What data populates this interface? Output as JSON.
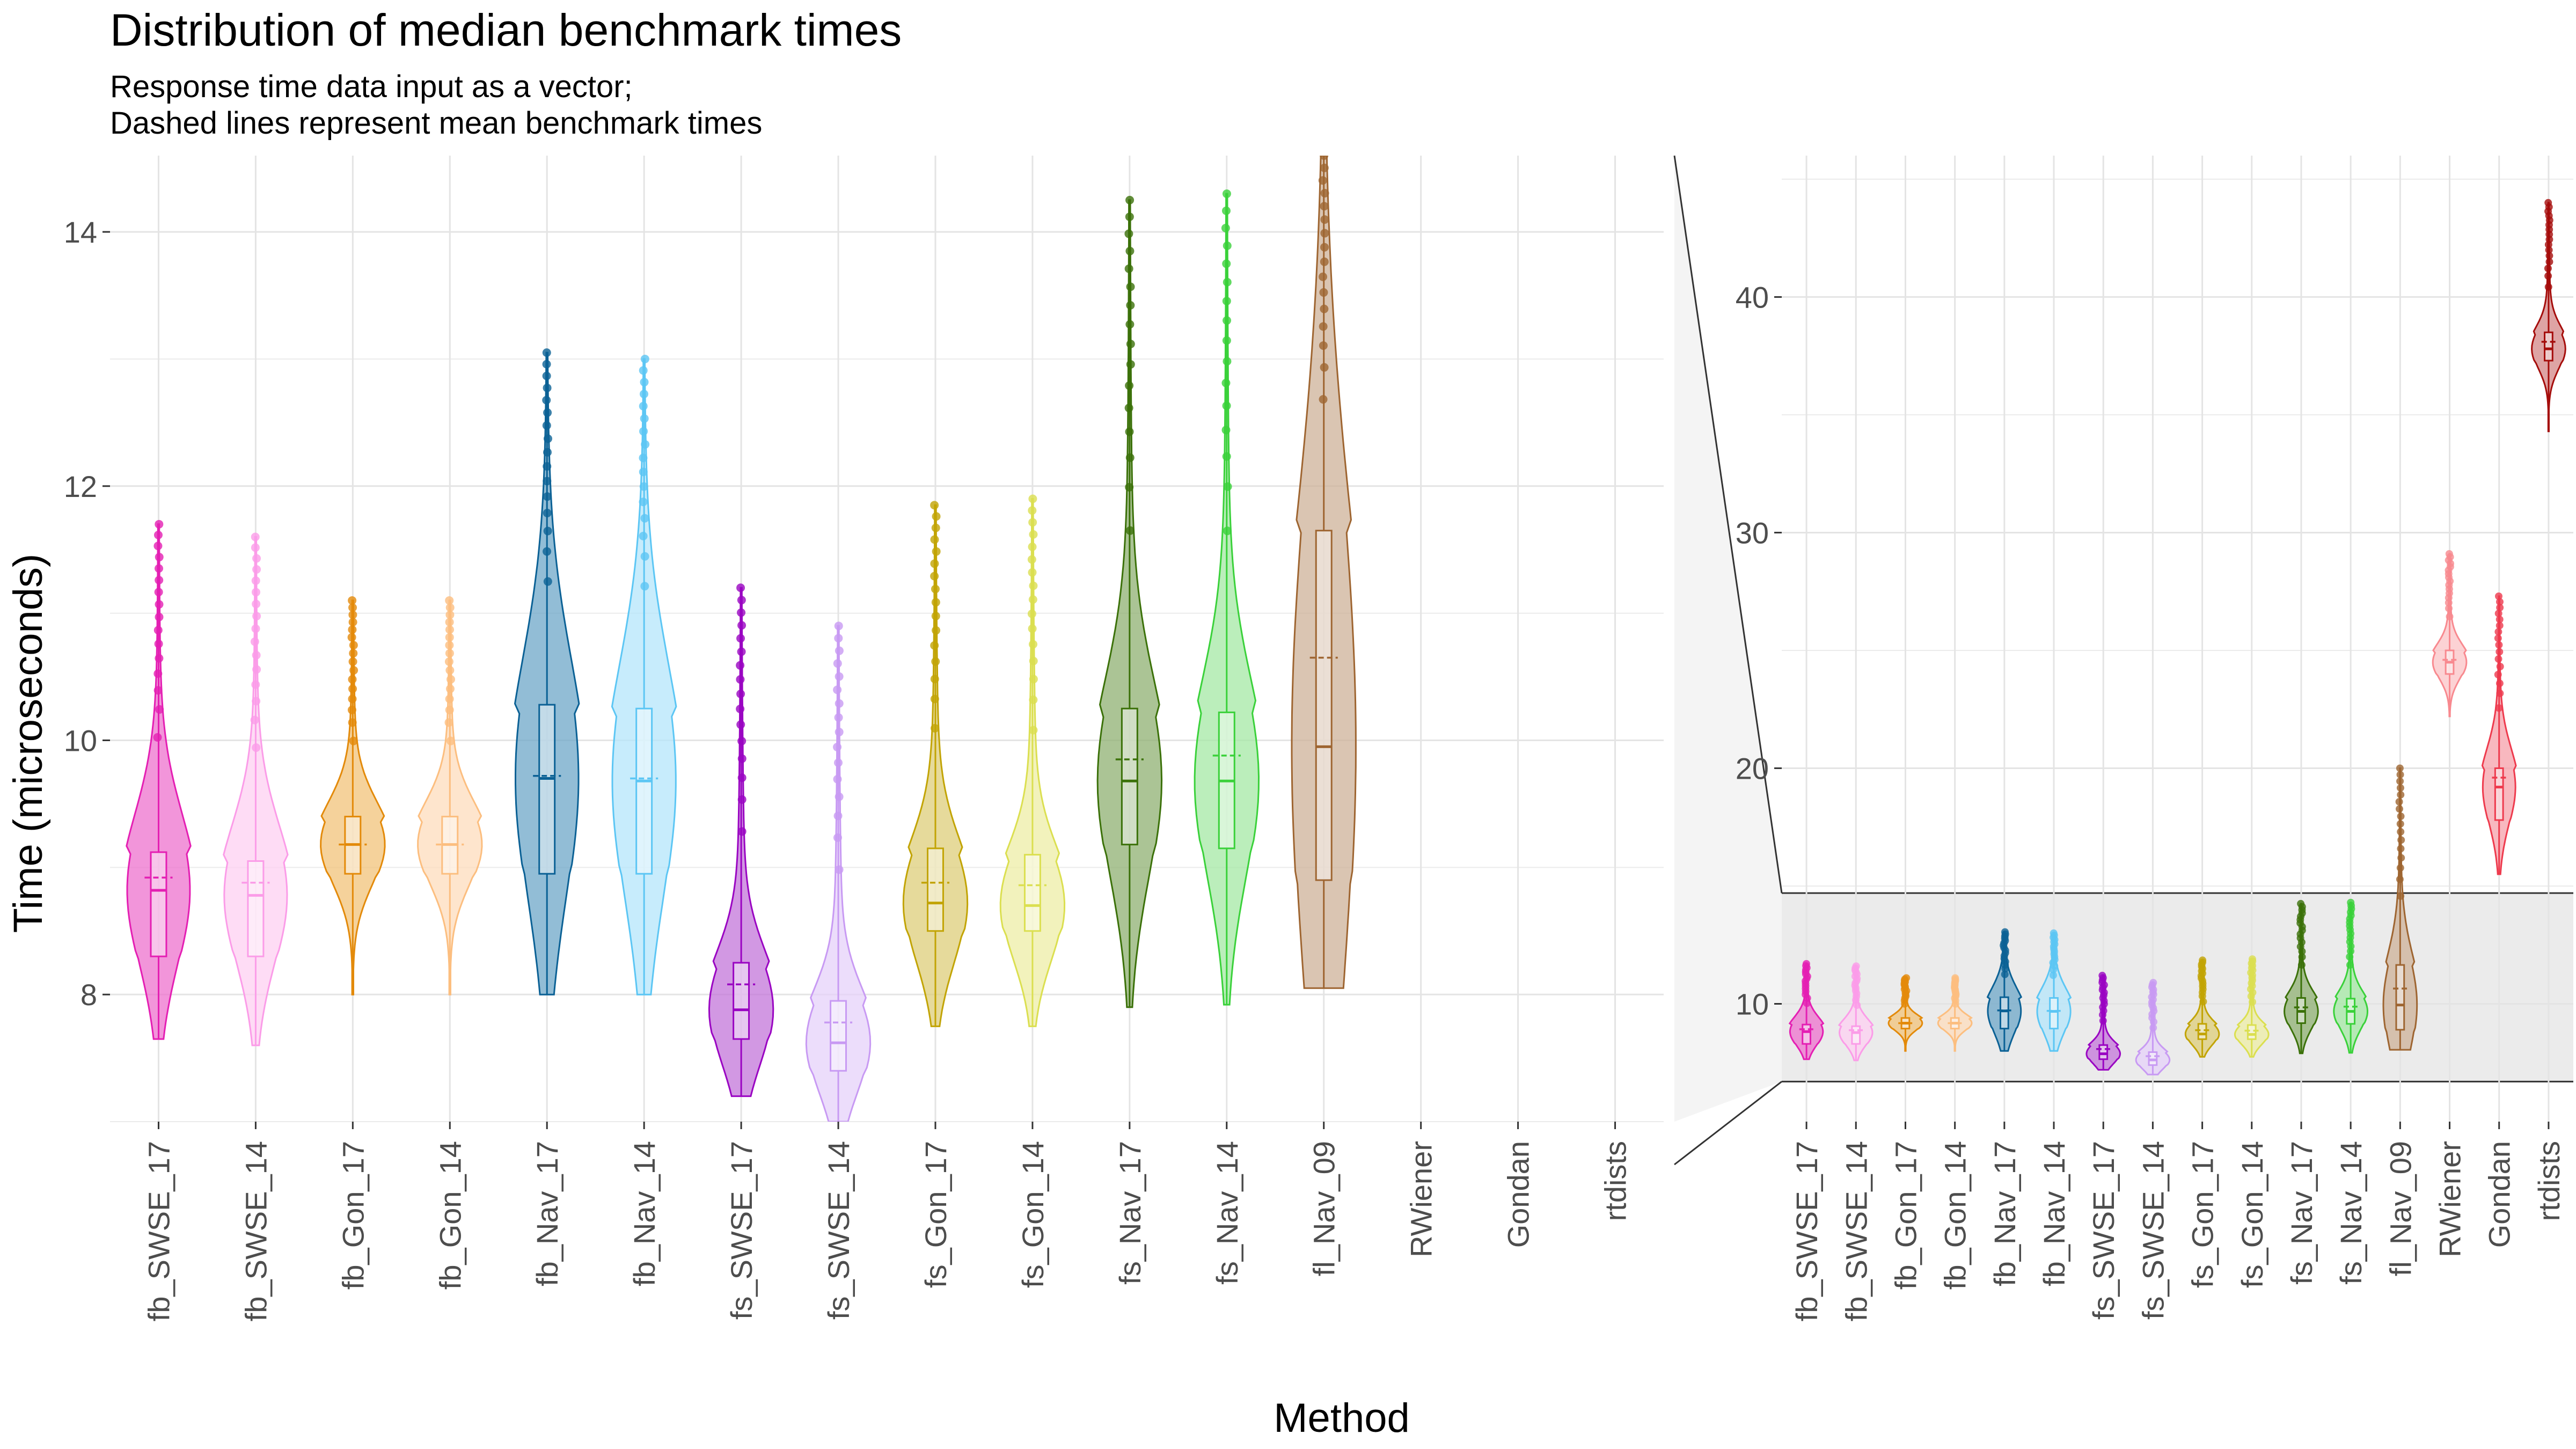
{
  "title": "Distribution of median benchmark times",
  "subtitle_lines": [
    "Response time data input as a vector;",
    "Dashed lines represent mean benchmark times"
  ],
  "chart_data": [
    {
      "type": "violin",
      "panel": "main",
      "xlabel": "Method",
      "ylabel": "Time (microseconds)",
      "ylim": [
        7.0,
        14.6
      ],
      "yticks": [
        8,
        10,
        12,
        14
      ],
      "grid": true,
      "categories": [
        "fb_SWSE_17",
        "fb_SWSE_14",
        "fb_Gon_17",
        "fb_Gon_14",
        "fb_Nav_17",
        "fb_Nav_14",
        "fs_SWSE_17",
        "fs_SWSE_14",
        "fs_Gon_17",
        "fs_Gon_14",
        "fs_Nav_17",
        "fs_Nav_14",
        "fl_Nav_09",
        "RWiener",
        "Gondan",
        "rtdists"
      ],
      "series": [
        {
          "category": "fb_SWSE_17",
          "color": "#e41fb3",
          "fill": "#ee72cd",
          "min": 7.65,
          "q1": 8.3,
          "median": 8.82,
          "q3": 9.12,
          "mean": 8.92,
          "max": 11.7
        },
        {
          "category": "fb_SWSE_14",
          "color": "#fb9ce8",
          "fill": "#fdd0f2",
          "min": 7.6,
          "q1": 8.3,
          "median": 8.78,
          "q3": 9.05,
          "mean": 8.88,
          "max": 11.6
        },
        {
          "category": "fb_Gon_17",
          "color": "#e38a0a",
          "fill": "#f1c37a",
          "min": 8.0,
          "q1": 8.95,
          "median": 9.18,
          "q3": 9.4,
          "mean": 9.18,
          "max": 11.1
        },
        {
          "category": "fb_Gon_14",
          "color": "#fcbe7f",
          "fill": "#fddcbc",
          "min": 8.0,
          "q1": 8.95,
          "median": 9.18,
          "q3": 9.4,
          "mean": 9.18,
          "max": 11.1
        },
        {
          "category": "fb_Nav_17",
          "color": "#0b6195",
          "fill": "#6da7c8",
          "min": 8.0,
          "q1": 8.95,
          "median": 9.7,
          "q3": 10.28,
          "mean": 9.72,
          "max": 13.05
        },
        {
          "category": "fb_Nav_14",
          "color": "#5cc6f4",
          "fill": "#b4e6fb",
          "min": 8.0,
          "q1": 8.95,
          "median": 9.68,
          "q3": 10.25,
          "mean": 9.7,
          "max": 13.0
        },
        {
          "category": "fs_SWSE_17",
          "color": "#9a05c2",
          "fill": "#c376da",
          "min": 7.2,
          "q1": 7.65,
          "median": 7.88,
          "q3": 8.25,
          "mean": 8.08,
          "max": 11.2
        },
        {
          "category": "fs_SWSE_14",
          "color": "#c89af3",
          "fill": "#e6d2fa",
          "min": 7.0,
          "q1": 7.4,
          "median": 7.62,
          "q3": 7.95,
          "mean": 7.78,
          "max": 10.9
        },
        {
          "category": "fs_Gon_17",
          "color": "#c2a405",
          "fill": "#dece79",
          "min": 7.75,
          "q1": 8.5,
          "median": 8.72,
          "q3": 9.15,
          "mean": 8.88,
          "max": 11.85
        },
        {
          "category": "fs_Gon_14",
          "color": "#dbdf50",
          "fill": "#ededa6",
          "min": 7.75,
          "q1": 8.5,
          "median": 8.7,
          "q3": 9.1,
          "mean": 8.86,
          "max": 11.9
        },
        {
          "category": "fs_Nav_17",
          "color": "#3b7109",
          "fill": "#8fb071",
          "min": 7.9,
          "q1": 9.18,
          "median": 9.68,
          "q3": 10.25,
          "mean": 9.85,
          "max": 14.25
        },
        {
          "category": "fs_Nav_14",
          "color": "#3ad13a",
          "fill": "#a4e8a4",
          "min": 7.92,
          "q1": 9.15,
          "median": 9.68,
          "q3": 10.22,
          "mean": 9.88,
          "max": 14.3
        },
        {
          "category": "fl_Nav_09",
          "color": "#9e6531",
          "fill": "#cdb198",
          "min": 8.05,
          "q1": 8.9,
          "median": 9.95,
          "q3": 11.65,
          "mean": 10.65,
          "max": 14.6
        }
      ]
    },
    {
      "type": "violin",
      "panel": "zoomed-out",
      "ylim": [
        5,
        46
      ],
      "yticks": [
        10,
        20,
        30,
        40
      ],
      "highlight_band": [
        6.7,
        14.7
      ],
      "categories": [
        "fb_SWSE_17",
        "fb_SWSE_14",
        "fb_Gon_17",
        "fb_Gon_14",
        "fb_Nav_17",
        "fb_Nav_14",
        "fs_SWSE_17",
        "fs_SWSE_14",
        "fs_Gon_17",
        "fs_Gon_14",
        "fs_Nav_17",
        "fs_Nav_14",
        "fl_Nav_09",
        "RWiener",
        "Gondan",
        "rtdists"
      ],
      "series": [
        {
          "category": "fb_SWSE_17",
          "color": "#e41fb3",
          "fill": "#ee72cd",
          "min": 7.65,
          "q1": 8.3,
          "median": 8.82,
          "q3": 9.12,
          "mean": 8.92,
          "max": 11.7
        },
        {
          "category": "fb_SWSE_14",
          "color": "#fb9ce8",
          "fill": "#fdd0f2",
          "min": 7.6,
          "q1": 8.3,
          "median": 8.78,
          "q3": 9.05,
          "mean": 8.88,
          "max": 11.6
        },
        {
          "category": "fb_Gon_17",
          "color": "#e38a0a",
          "fill": "#f1c37a",
          "min": 8.0,
          "q1": 8.95,
          "median": 9.18,
          "q3": 9.4,
          "mean": 9.18,
          "max": 11.1
        },
        {
          "category": "fb_Gon_14",
          "color": "#fcbe7f",
          "fill": "#fddcbc",
          "min": 8.0,
          "q1": 8.95,
          "median": 9.18,
          "q3": 9.4,
          "mean": 9.18,
          "max": 11.1
        },
        {
          "category": "fb_Nav_17",
          "color": "#0b6195",
          "fill": "#6da7c8",
          "min": 8.0,
          "q1": 8.95,
          "median": 9.7,
          "q3": 10.28,
          "mean": 9.72,
          "max": 13.05
        },
        {
          "category": "fb_Nav_14",
          "color": "#5cc6f4",
          "fill": "#b4e6fb",
          "min": 8.0,
          "q1": 8.95,
          "median": 9.68,
          "q3": 10.25,
          "mean": 9.7,
          "max": 13.0
        },
        {
          "category": "fs_SWSE_17",
          "color": "#9a05c2",
          "fill": "#c376da",
          "min": 7.2,
          "q1": 7.65,
          "median": 7.88,
          "q3": 8.25,
          "mean": 8.08,
          "max": 11.2
        },
        {
          "category": "fs_SWSE_14",
          "color": "#c89af3",
          "fill": "#e6d2fa",
          "min": 7.0,
          "q1": 7.4,
          "median": 7.62,
          "q3": 7.95,
          "mean": 7.78,
          "max": 10.9
        },
        {
          "category": "fs_Gon_17",
          "color": "#c2a405",
          "fill": "#dece79",
          "min": 7.75,
          "q1": 8.5,
          "median": 8.72,
          "q3": 9.15,
          "mean": 8.88,
          "max": 11.85
        },
        {
          "category": "fs_Gon_14",
          "color": "#dbdf50",
          "fill": "#ededa6",
          "min": 7.75,
          "q1": 8.5,
          "median": 8.7,
          "q3": 9.1,
          "mean": 8.86,
          "max": 11.9
        },
        {
          "category": "fs_Nav_17",
          "color": "#3b7109",
          "fill": "#8fb071",
          "min": 7.9,
          "q1": 9.18,
          "median": 9.68,
          "q3": 10.25,
          "mean": 9.85,
          "max": 14.25
        },
        {
          "category": "fs_Nav_14",
          "color": "#3ad13a",
          "fill": "#a4e8a4",
          "min": 7.92,
          "q1": 9.15,
          "median": 9.68,
          "q3": 10.22,
          "mean": 9.88,
          "max": 14.3
        },
        {
          "category": "fl_Nav_09",
          "color": "#9e6531",
          "fill": "#cdb198",
          "min": 8.05,
          "q1": 8.9,
          "median": 9.95,
          "q3": 11.65,
          "mean": 10.65,
          "max": 20.0
        },
        {
          "category": "RWiener",
          "color": "#f8898f",
          "fill": "#fbc3c6",
          "min": 22.2,
          "q1": 24.0,
          "median": 24.5,
          "q3": 25.0,
          "mean": 24.6,
          "max": 29.1
        },
        {
          "category": "Gondan",
          "color": "#ee3a4d",
          "fill": "#f6a0a9",
          "min": 15.5,
          "q1": 17.8,
          "median": 19.2,
          "q3": 20.0,
          "mean": 19.6,
          "max": 27.3
        },
        {
          "category": "rtdists",
          "color": "#a50d0b",
          "fill": "#d38685",
          "min": 34.3,
          "q1": 37.3,
          "median": 37.8,
          "q3": 38.5,
          "mean": 38.1,
          "max": 44.0
        }
      ]
    }
  ]
}
